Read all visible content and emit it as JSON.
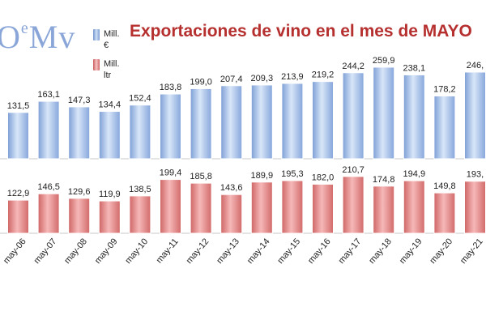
{
  "logo_text": "OeMv",
  "chart_data": {
    "type": "bar",
    "title": "Exportaciones de vino en el mes de MAYO",
    "categories": [
      "may-06",
      "may-07",
      "may-08",
      "may-09",
      "may-10",
      "may-11",
      "may-12",
      "may-13",
      "may-14",
      "may-15",
      "may-16",
      "may-17",
      "may-18",
      "may-19",
      "may-20",
      "may-21"
    ],
    "series": [
      {
        "name": "Mill. €",
        "color": "#9dbbe4",
        "labels": [
          "131,5",
          "163,1",
          "147,3",
          "134,4",
          "152,4",
          "183,8",
          "199,0",
          "207,4",
          "209,3",
          "213,9",
          "219,2",
          "244,2",
          "259,9",
          "238,1",
          "178,2",
          "246,"
        ],
        "values": [
          131.5,
          163.1,
          147.3,
          134.4,
          152.4,
          183.8,
          199.0,
          207.4,
          209.3,
          213.9,
          219.2,
          244.2,
          259.9,
          238.1,
          178.2,
          246.0
        ]
      },
      {
        "name": "Mill. ltr",
        "color": "#e88b8b",
        "labels": [
          "122,9",
          "146,5",
          "129,6",
          "119,9",
          "138,5",
          "199,4",
          "185,8",
          "143,6",
          "189,9",
          "195,3",
          "182,0",
          "210,7",
          "174,8",
          "194,9",
          "149,8",
          "193,"
        ],
        "values": [
          122.9,
          146.5,
          129.6,
          119.9,
          138.5,
          199.4,
          185.8,
          143.6,
          189.9,
          195.3,
          182.0,
          210.7,
          174.8,
          194.9,
          149.8,
          193.0
        ]
      }
    ],
    "legend": [
      "Mill.",
      "€",
      "Mill.",
      "ltr"
    ]
  }
}
